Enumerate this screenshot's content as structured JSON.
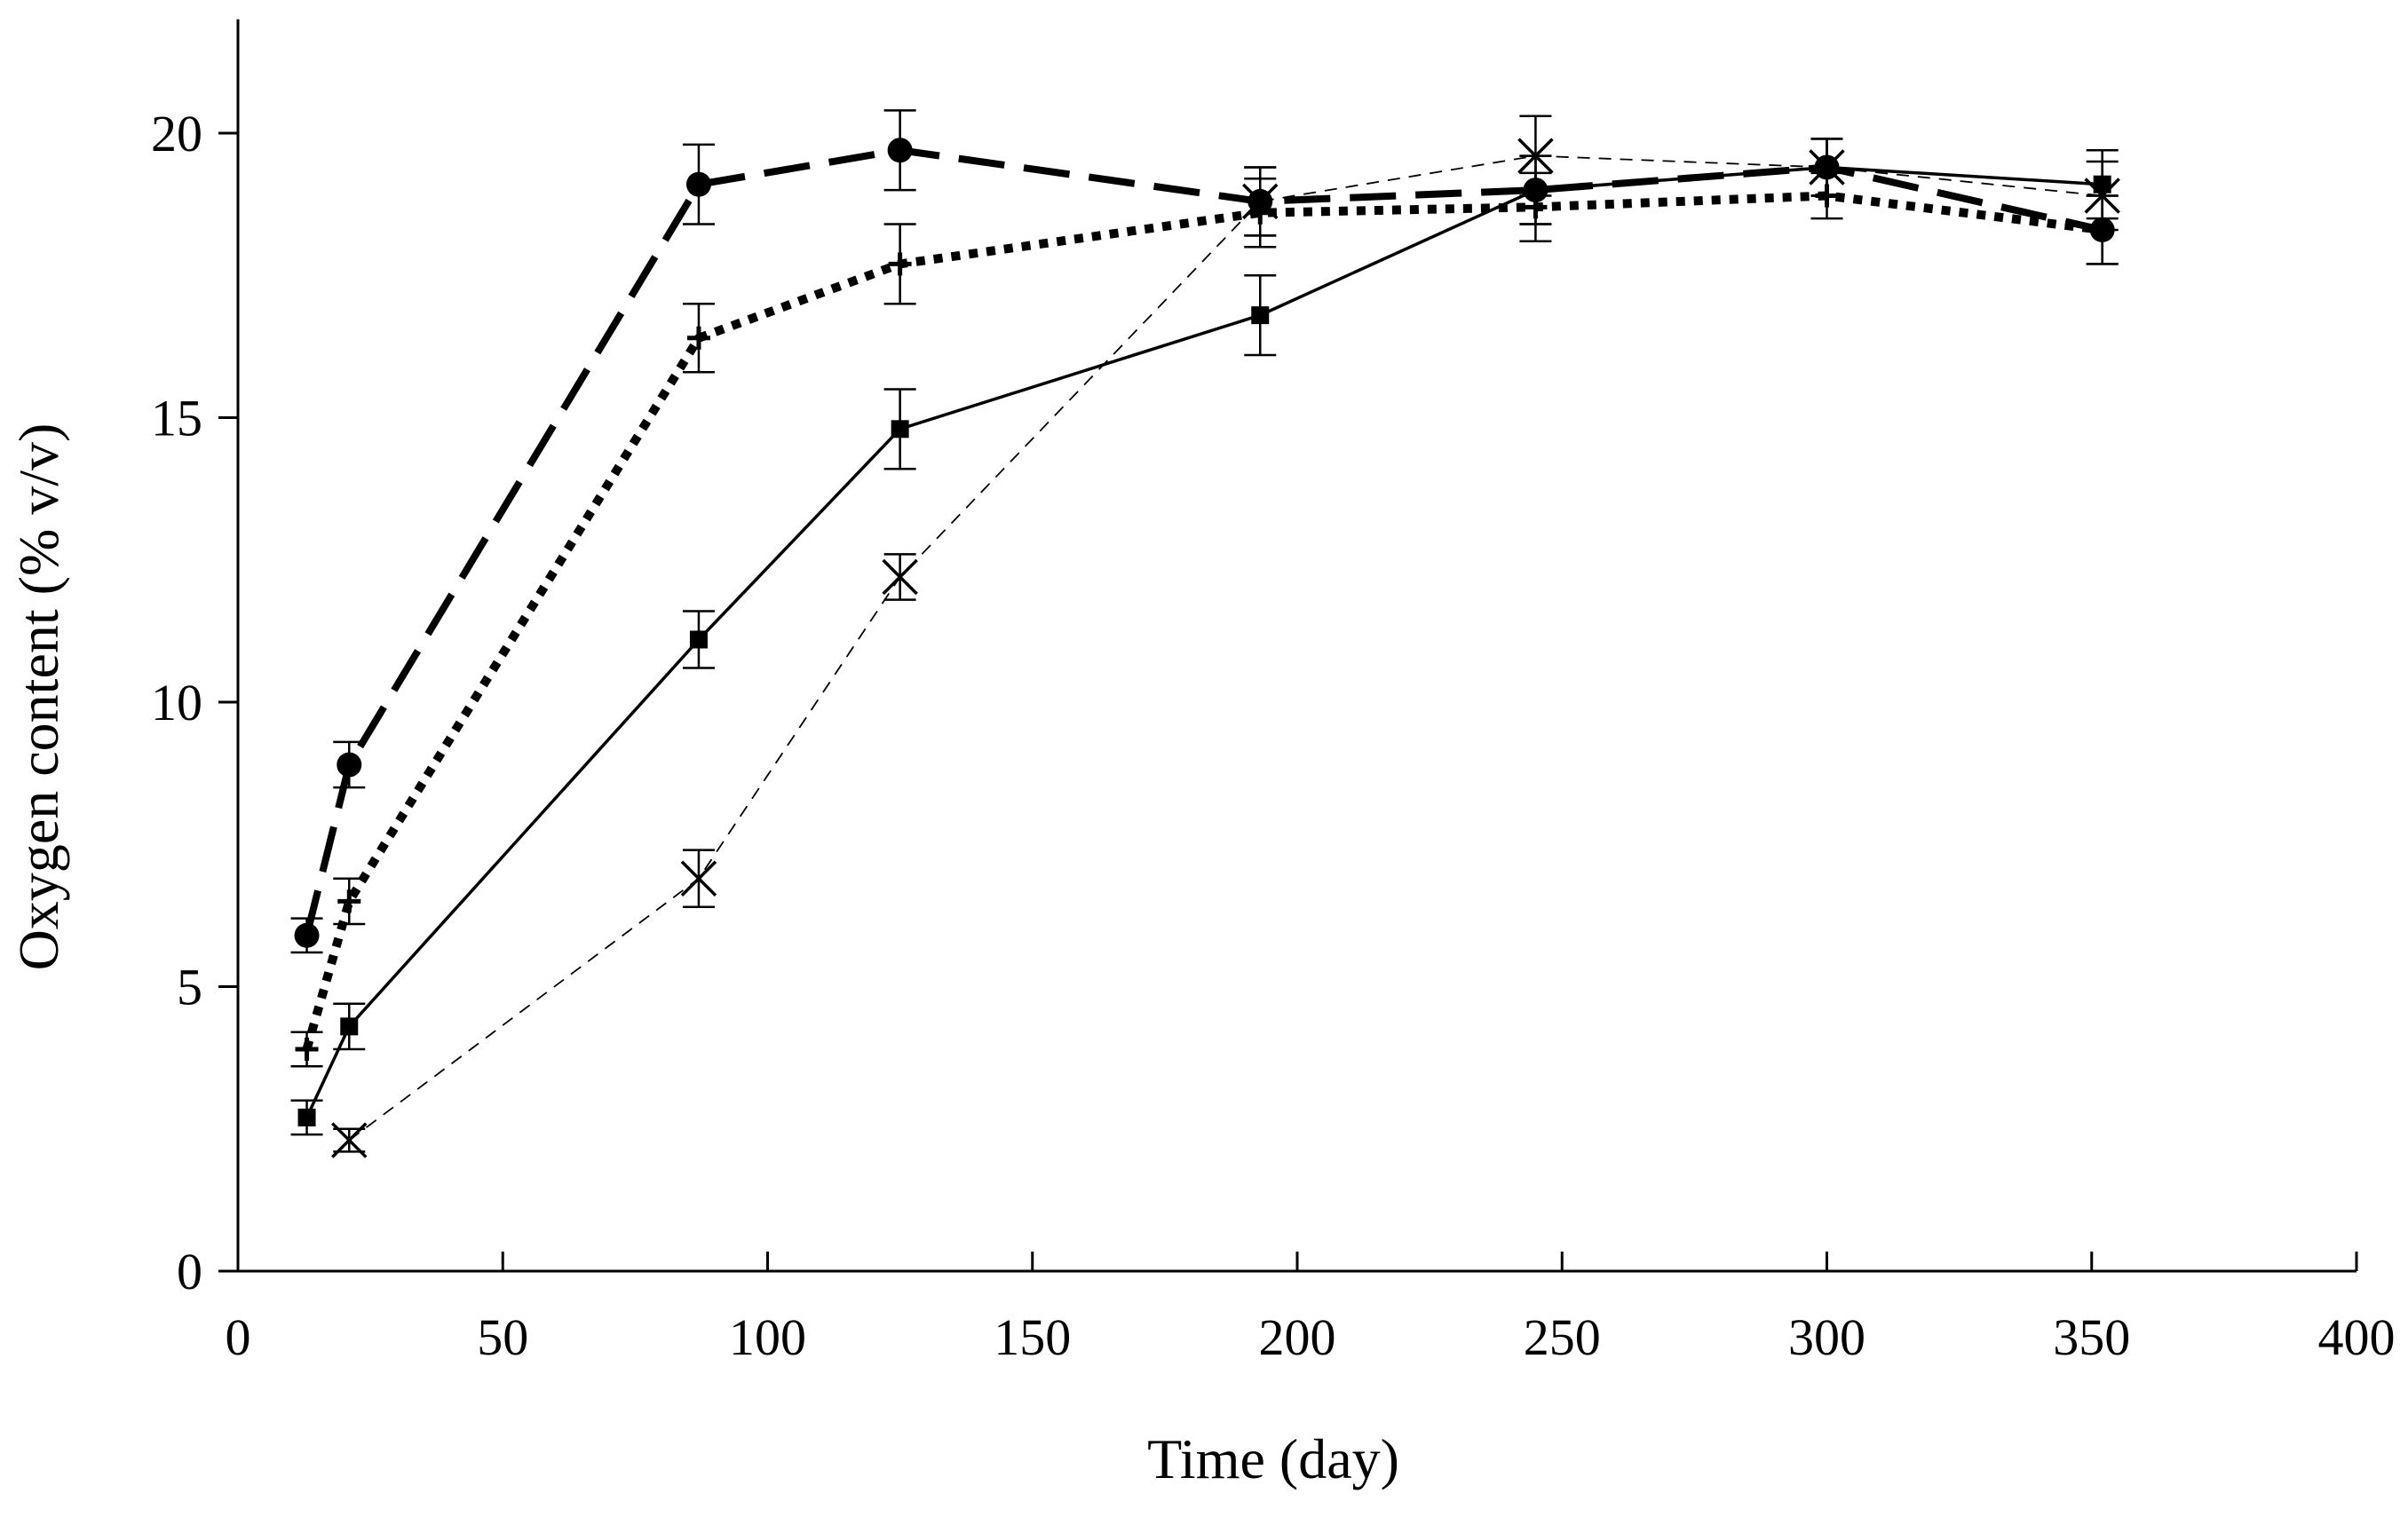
{
  "chart_data": {
    "type": "line",
    "title": "",
    "xlabel": "Time (day)",
    "ylabel": "Oxygen content (% v/v)",
    "xlim": [
      0,
      400
    ],
    "ylim": [
      0,
      22
    ],
    "xticks": [
      0,
      50,
      100,
      150,
      200,
      250,
      300,
      350,
      400
    ],
    "yticks": [
      0,
      5,
      10,
      15,
      20
    ],
    "xtick_labels": [
      "0",
      "50",
      "100",
      "150",
      "200",
      "250",
      "300",
      "350",
      "400"
    ],
    "ytick_labels": [
      "0",
      "5",
      "10",
      "15",
      "20"
    ],
    "grid": false,
    "legend": "none",
    "series": [
      {
        "name": "circle-marker-series",
        "line_style": "long-dash-thick",
        "marker": "circle",
        "x": [
          13,
          21,
          87,
          125,
          193,
          245,
          300,
          352
        ],
        "y": [
          5.9,
          8.9,
          19.1,
          19.7,
          18.8,
          19.0,
          19.4,
          18.3
        ],
        "error": [
          0.3,
          0.4,
          0.7,
          0.7,
          0.6,
          0.6,
          0.5,
          0.6
        ]
      },
      {
        "name": "plus-marker-series",
        "line_style": "dotted-thick",
        "marker": "plus",
        "x": [
          13,
          21,
          87,
          125,
          193,
          245,
          300,
          352
        ],
        "y": [
          3.9,
          6.5,
          16.4,
          17.7,
          18.6,
          18.7,
          18.9,
          18.3
        ],
        "error": [
          0.3,
          0.4,
          0.6,
          0.7,
          0.6,
          0.6,
          0.4,
          0.6
        ]
      },
      {
        "name": "square-marker-series",
        "line_style": "solid",
        "marker": "square",
        "x": [
          13,
          21,
          87,
          125,
          193,
          245,
          300,
          352
        ],
        "y": [
          2.7,
          4.3,
          11.1,
          14.8,
          16.8,
          19.0,
          19.4,
          19.1
        ],
        "error": [
          0.3,
          0.4,
          0.5,
          0.7,
          0.7,
          0.6,
          0.5,
          0.6
        ]
      },
      {
        "name": "x-marker-series",
        "line_style": "thin-dash",
        "marker": "x",
        "x": [
          21,
          87,
          125,
          193,
          245,
          300,
          352
        ],
        "y": [
          2.3,
          6.9,
          12.2,
          18.8,
          19.6,
          19.4,
          18.9
        ],
        "error": [
          0.2,
          0.5,
          0.4,
          0.6,
          0.7,
          0.5,
          0.6
        ]
      }
    ]
  }
}
